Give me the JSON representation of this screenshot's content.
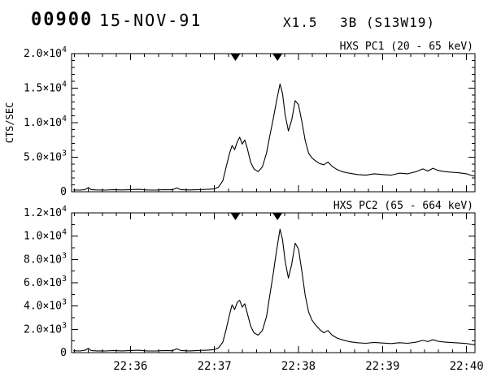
{
  "header": {
    "frame_id": "00900",
    "date": "15-NOV-91",
    "goes_class": "X1.5",
    "flare_class": "3B (S13W19)"
  },
  "chart_data": {
    "type": "line",
    "ylabel": "CTS/SEC",
    "xlabel": "",
    "xlim": [
      0.3,
      5.1
    ],
    "x_ticks": [
      {
        "v": 1,
        "label": "22:36"
      },
      {
        "v": 2,
        "label": "22:37"
      },
      {
        "v": 3,
        "label": "22:38"
      },
      {
        "v": 4,
        "label": "22:39"
      },
      {
        "v": 5,
        "label": "22:40"
      }
    ],
    "x_minor_per_major": 6,
    "flare_marker_times": [
      2.25,
      2.75
    ],
    "line_color": "#000000",
    "panels": [
      {
        "title": "HXS PC1 (20 - 65 keV)",
        "ylim": [
          0,
          20000
        ],
        "y_minor": 1000,
        "y_ticks": [
          {
            "v": 0,
            "m": "0",
            "e": ""
          },
          {
            "v": 5000,
            "m": "5.0×10",
            "e": "3"
          },
          {
            "v": 10000,
            "m": "1.0×10",
            "e": "4"
          },
          {
            "v": 15000,
            "m": "1.5×10",
            "e": "4"
          },
          {
            "v": 20000,
            "m": "2.0×10",
            "e": "4"
          }
        ],
        "points": [
          [
            0.32,
            260
          ],
          [
            0.4,
            240
          ],
          [
            0.46,
            300
          ],
          [
            0.5,
            620
          ],
          [
            0.53,
            300
          ],
          [
            0.6,
            260
          ],
          [
            0.7,
            240
          ],
          [
            0.8,
            300
          ],
          [
            0.9,
            260
          ],
          [
            1.0,
            300
          ],
          [
            1.1,
            340
          ],
          [
            1.2,
            260
          ],
          [
            1.3,
            240
          ],
          [
            1.4,
            300
          ],
          [
            1.5,
            280
          ],
          [
            1.55,
            560
          ],
          [
            1.6,
            300
          ],
          [
            1.7,
            260
          ],
          [
            1.8,
            300
          ],
          [
            1.9,
            340
          ],
          [
            2.0,
            420
          ],
          [
            2.05,
            700
          ],
          [
            2.1,
            1600
          ],
          [
            2.14,
            3600
          ],
          [
            2.18,
            5600
          ],
          [
            2.21,
            6700
          ],
          [
            2.24,
            6100
          ],
          [
            2.27,
            7200
          ],
          [
            2.3,
            7900
          ],
          [
            2.33,
            6900
          ],
          [
            2.36,
            7500
          ],
          [
            2.39,
            6300
          ],
          [
            2.43,
            4300
          ],
          [
            2.47,
            3300
          ],
          [
            2.52,
            2900
          ],
          [
            2.57,
            3600
          ],
          [
            2.62,
            5600
          ],
          [
            2.66,
            8200
          ],
          [
            2.7,
            10600
          ],
          [
            2.74,
            13200
          ],
          [
            2.78,
            15600
          ],
          [
            2.81,
            14200
          ],
          [
            2.84,
            11200
          ],
          [
            2.88,
            8800
          ],
          [
            2.92,
            10400
          ],
          [
            2.96,
            13200
          ],
          [
            3.0,
            12600
          ],
          [
            3.04,
            10200
          ],
          [
            3.08,
            7400
          ],
          [
            3.12,
            5600
          ],
          [
            3.16,
            4900
          ],
          [
            3.2,
            4500
          ],
          [
            3.25,
            4100
          ],
          [
            3.3,
            3900
          ],
          [
            3.35,
            4300
          ],
          [
            3.4,
            3700
          ],
          [
            3.46,
            3200
          ],
          [
            3.52,
            2900
          ],
          [
            3.6,
            2700
          ],
          [
            3.7,
            2500
          ],
          [
            3.8,
            2400
          ],
          [
            3.9,
            2600
          ],
          [
            4.0,
            2500
          ],
          [
            4.1,
            2400
          ],
          [
            4.2,
            2700
          ],
          [
            4.3,
            2600
          ],
          [
            4.4,
            2900
          ],
          [
            4.48,
            3300
          ],
          [
            4.54,
            3000
          ],
          [
            4.6,
            3400
          ],
          [
            4.66,
            3100
          ],
          [
            4.72,
            2950
          ],
          [
            4.8,
            2850
          ],
          [
            4.9,
            2750
          ],
          [
            5.0,
            2600
          ],
          [
            5.05,
            2400
          ],
          [
            5.1,
            2250
          ]
        ]
      },
      {
        "title": "HXS PC2 (65 - 664 keV)",
        "ylim": [
          0,
          12000
        ],
        "y_minor": 1000,
        "y_ticks": [
          {
            "v": 0,
            "m": "0",
            "e": ""
          },
          {
            "v": 2000,
            "m": "2.0×10",
            "e": "3"
          },
          {
            "v": 4000,
            "m": "4.0×10",
            "e": "3"
          },
          {
            "v": 6000,
            "m": "6.0×10",
            "e": "3"
          },
          {
            "v": 8000,
            "m": "8.0×10",
            "e": "3"
          },
          {
            "v": 10000,
            "m": "1.0×10",
            "e": "4"
          },
          {
            "v": 12000,
            "m": "1.2×10",
            "e": "4"
          }
        ],
        "points": [
          [
            0.32,
            160
          ],
          [
            0.4,
            140
          ],
          [
            0.46,
            200
          ],
          [
            0.5,
            380
          ],
          [
            0.53,
            180
          ],
          [
            0.6,
            150
          ],
          [
            0.7,
            140
          ],
          [
            0.8,
            180
          ],
          [
            0.9,
            150
          ],
          [
            1.0,
            180
          ],
          [
            1.1,
            200
          ],
          [
            1.2,
            150
          ],
          [
            1.3,
            140
          ],
          [
            1.4,
            180
          ],
          [
            1.5,
            160
          ],
          [
            1.55,
            330
          ],
          [
            1.6,
            180
          ],
          [
            1.7,
            150
          ],
          [
            1.8,
            180
          ],
          [
            1.9,
            200
          ],
          [
            2.0,
            260
          ],
          [
            2.05,
            420
          ],
          [
            2.1,
            900
          ],
          [
            2.14,
            2000
          ],
          [
            2.18,
            3300
          ],
          [
            2.21,
            4100
          ],
          [
            2.24,
            3700
          ],
          [
            2.27,
            4300
          ],
          [
            2.3,
            4500
          ],
          [
            2.33,
            3900
          ],
          [
            2.36,
            4200
          ],
          [
            2.39,
            3400
          ],
          [
            2.43,
            2300
          ],
          [
            2.47,
            1700
          ],
          [
            2.52,
            1500
          ],
          [
            2.57,
            1900
          ],
          [
            2.62,
            3100
          ],
          [
            2.66,
            5000
          ],
          [
            2.7,
            6800
          ],
          [
            2.74,
            8800
          ],
          [
            2.78,
            10600
          ],
          [
            2.81,
            9700
          ],
          [
            2.84,
            7900
          ],
          [
            2.88,
            6400
          ],
          [
            2.92,
            7600
          ],
          [
            2.96,
            9400
          ],
          [
            3.0,
            8900
          ],
          [
            3.04,
            7000
          ],
          [
            3.08,
            4900
          ],
          [
            3.12,
            3500
          ],
          [
            3.16,
            2800
          ],
          [
            3.2,
            2400
          ],
          [
            3.25,
            2000
          ],
          [
            3.3,
            1700
          ],
          [
            3.35,
            1900
          ],
          [
            3.4,
            1500
          ],
          [
            3.46,
            1250
          ],
          [
            3.52,
            1100
          ],
          [
            3.6,
            950
          ],
          [
            3.7,
            850
          ],
          [
            3.8,
            800
          ],
          [
            3.9,
            880
          ],
          [
            4.0,
            820
          ],
          [
            4.1,
            780
          ],
          [
            4.2,
            850
          ],
          [
            4.3,
            800
          ],
          [
            4.4,
            900
          ],
          [
            4.48,
            1050
          ],
          [
            4.54,
            950
          ],
          [
            4.6,
            1100
          ],
          [
            4.66,
            980
          ],
          [
            4.72,
            920
          ],
          [
            4.8,
            880
          ],
          [
            4.9,
            830
          ],
          [
            5.0,
            780
          ],
          [
            5.05,
            720
          ],
          [
            5.1,
            680
          ]
        ]
      }
    ]
  }
}
